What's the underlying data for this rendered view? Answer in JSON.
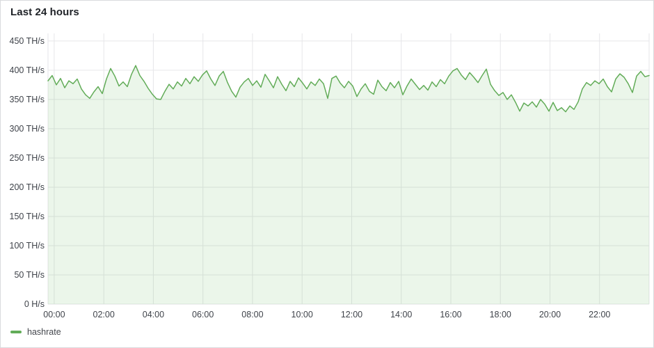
{
  "panel": {
    "title": "Last 24 hours"
  },
  "legend": {
    "series": [
      {
        "label": "hashrate",
        "color": "#62ac58"
      }
    ]
  },
  "chart_data": {
    "type": "area",
    "title": "Last 24 hours",
    "series": [
      {
        "name": "hashrate",
        "unit": "TH/s"
      }
    ],
    "line_color": "#62ac58",
    "fill_color": "rgba(115, 191, 105, 0.14)",
    "grid_color": "#e6e6e9",
    "axis_text_color": "#3f434a",
    "ylim": [
      0,
      463
    ],
    "x_range_hours": [
      -0.25,
      24
    ],
    "grid": true,
    "legend_position": "bottom-left",
    "y_ticks": [
      {
        "value": 450,
        "label": "450 TH/s"
      },
      {
        "value": 400,
        "label": "400 TH/s"
      },
      {
        "value": 350,
        "label": "350 TH/s"
      },
      {
        "value": 300,
        "label": "300 TH/s"
      },
      {
        "value": 250,
        "label": "250 TH/s"
      },
      {
        "value": 200,
        "label": "200 TH/s"
      },
      {
        "value": 150,
        "label": "150 TH/s"
      },
      {
        "value": 100,
        "label": "100 TH/s"
      },
      {
        "value": 50,
        "label": "50 TH/s"
      },
      {
        "value": 0,
        "label": "0 H/s"
      }
    ],
    "x_ticks": [
      {
        "hour": 0,
        "label": "00:00"
      },
      {
        "hour": 2,
        "label": "02:00"
      },
      {
        "hour": 4,
        "label": "04:00"
      },
      {
        "hour": 6,
        "label": "06:00"
      },
      {
        "hour": 8,
        "label": "08:00"
      },
      {
        "hour": 10,
        "label": "10:00"
      },
      {
        "hour": 12,
        "label": "12:00"
      },
      {
        "hour": 14,
        "label": "14:00"
      },
      {
        "hour": 16,
        "label": "16:00"
      },
      {
        "hour": 18,
        "label": "18:00"
      },
      {
        "hour": 20,
        "label": "20:00"
      },
      {
        "hour": 22,
        "label": "22:00"
      }
    ],
    "values": [
      382,
      391,
      375,
      386,
      370,
      382,
      377,
      385,
      368,
      358,
      352,
      363,
      372,
      360,
      385,
      403,
      390,
      373,
      380,
      372,
      393,
      408,
      391,
      381,
      369,
      359,
      351,
      350,
      364,
      376,
      368,
      380,
      373,
      386,
      377,
      389,
      381,
      392,
      399,
      385,
      374,
      390,
      398,
      379,
      364,
      354,
      371,
      380,
      386,
      374,
      382,
      371,
      393,
      382,
      370,
      389,
      376,
      365,
      381,
      372,
      387,
      378,
      368,
      380,
      374,
      385,
      377,
      352,
      386,
      390,
      378,
      370,
      381,
      373,
      355,
      368,
      377,
      364,
      359,
      383,
      372,
      365,
      379,
      370,
      381,
      358,
      373,
      385,
      376,
      367,
      374,
      366,
      380,
      372,
      384,
      377,
      390,
      399,
      403,
      392,
      384,
      396,
      388,
      379,
      391,
      402,
      376,
      365,
      357,
      362,
      350,
      358,
      345,
      330,
      344,
      339,
      346,
      337,
      350,
      342,
      330,
      345,
      331,
      336,
      329,
      339,
      333,
      346,
      368,
      379,
      374,
      382,
      377,
      385,
      372,
      363,
      385,
      394,
      388,
      377,
      362,
      390,
      398,
      389,
      391
    ]
  }
}
